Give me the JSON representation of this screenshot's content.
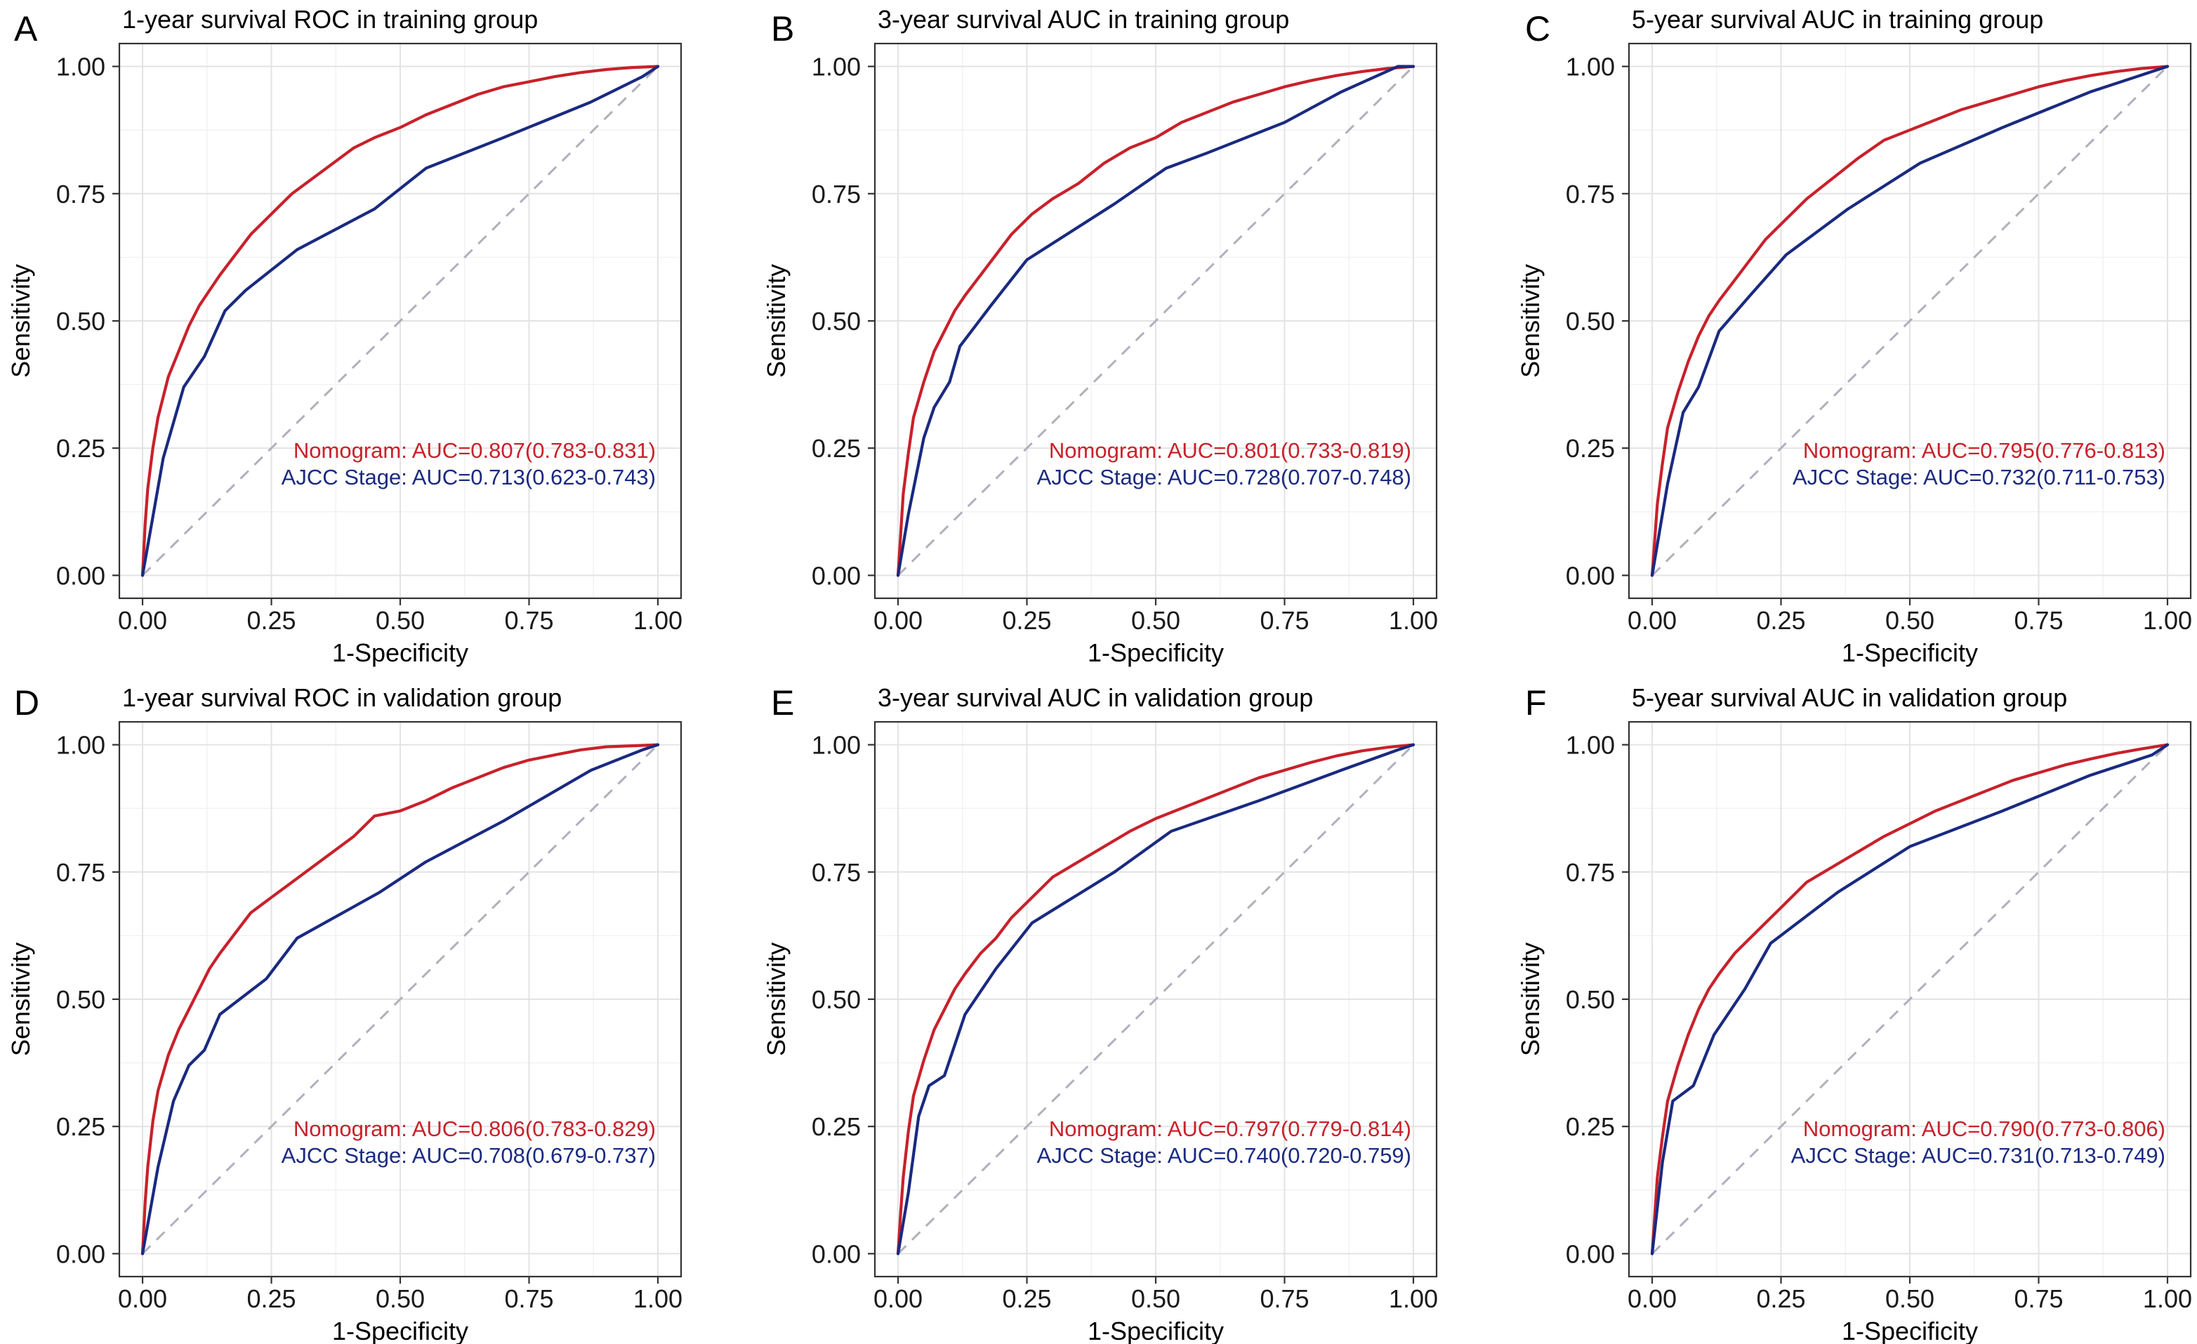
{
  "chart_data": [
    {
      "panel": "A",
      "type": "line",
      "title": "1-year survival ROC in training group",
      "xlabel": "1-Specificity",
      "ylabel": "Sensitivity",
      "xlim": [
        0,
        1
      ],
      "ylim": [
        0,
        1
      ],
      "ticks": [
        "0.00",
        "0.25",
        "0.50",
        "0.75",
        "1.00"
      ],
      "grid": true,
      "reference_line": "diagonal dashed",
      "series": [
        {
          "name": "Nomogram",
          "color": "#c8212b",
          "annotation": "Nomogram: AUC=0.807(0.783-0.831)",
          "x": [
            0,
            0.005,
            0.01,
            0.02,
            0.03,
            0.05,
            0.07,
            0.09,
            0.11,
            0.13,
            0.15,
            0.18,
            0.21,
            0.25,
            0.29,
            0.33,
            0.37,
            0.41,
            0.45,
            0.5,
            0.55,
            0.6,
            0.65,
            0.7,
            0.75,
            0.8,
            0.85,
            0.9,
            0.95,
            1
          ],
          "y": [
            0,
            0.1,
            0.17,
            0.25,
            0.31,
            0.39,
            0.44,
            0.49,
            0.53,
            0.56,
            0.59,
            0.63,
            0.67,
            0.71,
            0.75,
            0.78,
            0.81,
            0.84,
            0.86,
            0.88,
            0.905,
            0.925,
            0.945,
            0.96,
            0.97,
            0.98,
            0.988,
            0.994,
            0.998,
            1
          ]
        },
        {
          "name": "AJCC Stage",
          "color": "#1a2a80",
          "annotation": "AJCC Stage: AUC=0.713(0.623-0.743)",
          "x": [
            0,
            0.04,
            0.08,
            0.12,
            0.16,
            0.2,
            0.3,
            0.45,
            0.55,
            0.7,
            0.87,
            0.97,
            1
          ],
          "y": [
            0,
            0.23,
            0.37,
            0.43,
            0.52,
            0.56,
            0.64,
            0.72,
            0.8,
            0.86,
            0.93,
            0.98,
            1
          ]
        }
      ]
    },
    {
      "panel": "B",
      "type": "line",
      "title": "3-year survival AUC in training group",
      "xlabel": "1-Specificity",
      "ylabel": "Sensitivity",
      "xlim": [
        0,
        1
      ],
      "ylim": [
        0,
        1
      ],
      "ticks": [
        "0.00",
        "0.25",
        "0.50",
        "0.75",
        "1.00"
      ],
      "grid": true,
      "reference_line": "diagonal dashed",
      "series": [
        {
          "name": "Nomogram",
          "color": "#c8212b",
          "annotation": "Nomogram: AUC=0.801(0.733-0.819)",
          "x": [
            0,
            0.005,
            0.01,
            0.02,
            0.03,
            0.05,
            0.07,
            0.09,
            0.11,
            0.13,
            0.16,
            0.19,
            0.22,
            0.26,
            0.3,
            0.35,
            0.4,
            0.45,
            0.5,
            0.55,
            0.6,
            0.65,
            0.7,
            0.75,
            0.8,
            0.85,
            0.9,
            0.95,
            1
          ],
          "y": [
            0,
            0.08,
            0.16,
            0.24,
            0.31,
            0.38,
            0.44,
            0.48,
            0.52,
            0.55,
            0.59,
            0.63,
            0.67,
            0.71,
            0.74,
            0.77,
            0.81,
            0.84,
            0.86,
            0.89,
            0.91,
            0.93,
            0.945,
            0.96,
            0.972,
            0.982,
            0.99,
            0.996,
            1
          ]
        },
        {
          "name": "AJCC Stage",
          "color": "#1a2a80",
          "annotation": "AJCC Stage: AUC=0.728(0.707-0.748)",
          "x": [
            0,
            0.02,
            0.05,
            0.07,
            0.1,
            0.12,
            0.18,
            0.25,
            0.42,
            0.52,
            0.6,
            0.75,
            0.86,
            0.97,
            1
          ],
          "y": [
            0,
            0.12,
            0.27,
            0.33,
            0.38,
            0.45,
            0.53,
            0.62,
            0.73,
            0.8,
            0.83,
            0.89,
            0.95,
            1.0,
            1.0
          ]
        }
      ]
    },
    {
      "panel": "C",
      "type": "line",
      "title": "5-year survival AUC in training group",
      "xlabel": "1-Specificity",
      "ylabel": "Sensitivity",
      "xlim": [
        0,
        1
      ],
      "ylim": [
        0,
        1
      ],
      "ticks": [
        "0.00",
        "0.25",
        "0.50",
        "0.75",
        "1.00"
      ],
      "grid": true,
      "reference_line": "diagonal dashed",
      "series": [
        {
          "name": "Nomogram",
          "color": "#c8212b",
          "annotation": "Nomogram: AUC=0.795(0.776-0.813)",
          "x": [
            0,
            0.01,
            0.02,
            0.03,
            0.05,
            0.07,
            0.09,
            0.11,
            0.13,
            0.16,
            0.19,
            0.22,
            0.26,
            0.3,
            0.35,
            0.4,
            0.45,
            0.5,
            0.55,
            0.6,
            0.65,
            0.7,
            0.75,
            0.8,
            0.85,
            0.9,
            0.95,
            1
          ],
          "y": [
            0,
            0.14,
            0.22,
            0.29,
            0.36,
            0.42,
            0.47,
            0.51,
            0.54,
            0.58,
            0.62,
            0.66,
            0.7,
            0.74,
            0.78,
            0.82,
            0.855,
            0.875,
            0.895,
            0.915,
            0.93,
            0.945,
            0.96,
            0.972,
            0.982,
            0.99,
            0.996,
            1
          ]
        },
        {
          "name": "AJCC Stage",
          "color": "#1a2a80",
          "annotation": "AJCC Stage: AUC=0.732(0.711-0.753)",
          "x": [
            0,
            0.03,
            0.06,
            0.09,
            0.13,
            0.19,
            0.26,
            0.38,
            0.52,
            0.68,
            0.85,
            0.97,
            1
          ],
          "y": [
            0,
            0.18,
            0.32,
            0.37,
            0.48,
            0.55,
            0.63,
            0.72,
            0.81,
            0.88,
            0.95,
            0.99,
            1
          ]
        }
      ]
    },
    {
      "panel": "D",
      "type": "line",
      "title": "1-year survival ROC in validation group",
      "xlabel": "1-Specificity",
      "ylabel": "Sensitivity",
      "xlim": [
        0,
        1
      ],
      "ylim": [
        0,
        1
      ],
      "ticks": [
        "0.00",
        "0.25",
        "0.50",
        "0.75",
        "1.00"
      ],
      "grid": true,
      "reference_line": "diagonal dashed",
      "series": [
        {
          "name": "Nomogram",
          "color": "#c8212b",
          "annotation": "Nomogram: AUC=0.806(0.783-0.829)",
          "x": [
            0,
            0.005,
            0.01,
            0.02,
            0.03,
            0.05,
            0.07,
            0.09,
            0.11,
            0.13,
            0.15,
            0.18,
            0.21,
            0.25,
            0.29,
            0.33,
            0.37,
            0.41,
            0.45,
            0.5,
            0.55,
            0.6,
            0.65,
            0.7,
            0.75,
            0.8,
            0.85,
            0.9,
            0.95,
            1
          ],
          "y": [
            0,
            0.1,
            0.17,
            0.26,
            0.32,
            0.39,
            0.44,
            0.48,
            0.52,
            0.56,
            0.59,
            0.63,
            0.67,
            0.7,
            0.73,
            0.76,
            0.79,
            0.82,
            0.86,
            0.87,
            0.89,
            0.915,
            0.935,
            0.955,
            0.97,
            0.98,
            0.99,
            0.996,
            0.998,
            1
          ]
        },
        {
          "name": "AJCC Stage",
          "color": "#1a2a80",
          "annotation": "AJCC Stage: AUC=0.708(0.679-0.737)",
          "x": [
            0,
            0.03,
            0.06,
            0.09,
            0.12,
            0.15,
            0.24,
            0.3,
            0.46,
            0.55,
            0.7,
            0.87,
            0.97,
            1
          ],
          "y": [
            0,
            0.17,
            0.3,
            0.37,
            0.4,
            0.47,
            0.54,
            0.62,
            0.71,
            0.77,
            0.85,
            0.95,
            0.99,
            1
          ]
        }
      ]
    },
    {
      "panel": "E",
      "type": "line",
      "title": "3-year survival AUC in validation group",
      "xlabel": "1-Specificity",
      "ylabel": "Sensitivity",
      "xlim": [
        0,
        1
      ],
      "ylim": [
        0,
        1
      ],
      "ticks": [
        "0.00",
        "0.25",
        "0.50",
        "0.75",
        "1.00"
      ],
      "grid": true,
      "reference_line": "diagonal dashed",
      "series": [
        {
          "name": "Nomogram",
          "color": "#c8212b",
          "annotation": "Nomogram: AUC=0.797(0.779-0.814)",
          "x": [
            0,
            0.005,
            0.01,
            0.02,
            0.03,
            0.05,
            0.07,
            0.09,
            0.11,
            0.13,
            0.16,
            0.19,
            0.22,
            0.26,
            0.3,
            0.35,
            0.4,
            0.45,
            0.5,
            0.55,
            0.6,
            0.65,
            0.7,
            0.75,
            0.8,
            0.85,
            0.9,
            0.95,
            1
          ],
          "y": [
            0,
            0.08,
            0.15,
            0.24,
            0.31,
            0.38,
            0.44,
            0.48,
            0.52,
            0.55,
            0.59,
            0.62,
            0.66,
            0.7,
            0.74,
            0.77,
            0.8,
            0.83,
            0.855,
            0.875,
            0.895,
            0.915,
            0.935,
            0.95,
            0.965,
            0.978,
            0.988,
            0.995,
            1
          ]
        },
        {
          "name": "AJCC Stage",
          "color": "#1a2a80",
          "annotation": "AJCC Stage: AUC=0.740(0.720-0.759)",
          "x": [
            0,
            0.02,
            0.04,
            0.06,
            0.09,
            0.13,
            0.19,
            0.26,
            0.42,
            0.53,
            0.7,
            0.86,
            0.97,
            1
          ],
          "y": [
            0,
            0.12,
            0.27,
            0.33,
            0.35,
            0.47,
            0.56,
            0.65,
            0.75,
            0.83,
            0.89,
            0.95,
            0.99,
            1
          ]
        }
      ]
    },
    {
      "panel": "F",
      "type": "line",
      "title": "5-year survival AUC in validation group",
      "xlabel": "1-Specificity",
      "ylabel": "Sensitivity",
      "xlim": [
        0,
        1
      ],
      "ylim": [
        0,
        1
      ],
      "ticks": [
        "0.00",
        "0.25",
        "0.50",
        "0.75",
        "1.00"
      ],
      "grid": true,
      "reference_line": "diagonal dashed",
      "series": [
        {
          "name": "Nomogram",
          "color": "#c8212b",
          "annotation": "Nomogram: AUC=0.790(0.773-0.806)",
          "x": [
            0,
            0.01,
            0.02,
            0.03,
            0.05,
            0.07,
            0.09,
            0.11,
            0.13,
            0.16,
            0.19,
            0.22,
            0.26,
            0.3,
            0.35,
            0.4,
            0.45,
            0.5,
            0.55,
            0.6,
            0.65,
            0.7,
            0.75,
            0.8,
            0.85,
            0.9,
            0.95,
            1
          ],
          "y": [
            0,
            0.15,
            0.23,
            0.3,
            0.37,
            0.43,
            0.48,
            0.52,
            0.55,
            0.59,
            0.62,
            0.65,
            0.69,
            0.73,
            0.76,
            0.79,
            0.82,
            0.845,
            0.87,
            0.89,
            0.91,
            0.93,
            0.945,
            0.96,
            0.972,
            0.983,
            0.992,
            1
          ]
        },
        {
          "name": "AJCC Stage",
          "color": "#1a2a80",
          "annotation": "AJCC Stage: AUC=0.731(0.713-0.749)",
          "x": [
            0,
            0.02,
            0.04,
            0.08,
            0.12,
            0.18,
            0.23,
            0.36,
            0.5,
            0.68,
            0.85,
            0.97,
            1
          ],
          "y": [
            0,
            0.18,
            0.3,
            0.33,
            0.43,
            0.52,
            0.61,
            0.71,
            0.8,
            0.87,
            0.94,
            0.98,
            1
          ]
        }
      ]
    }
  ]
}
